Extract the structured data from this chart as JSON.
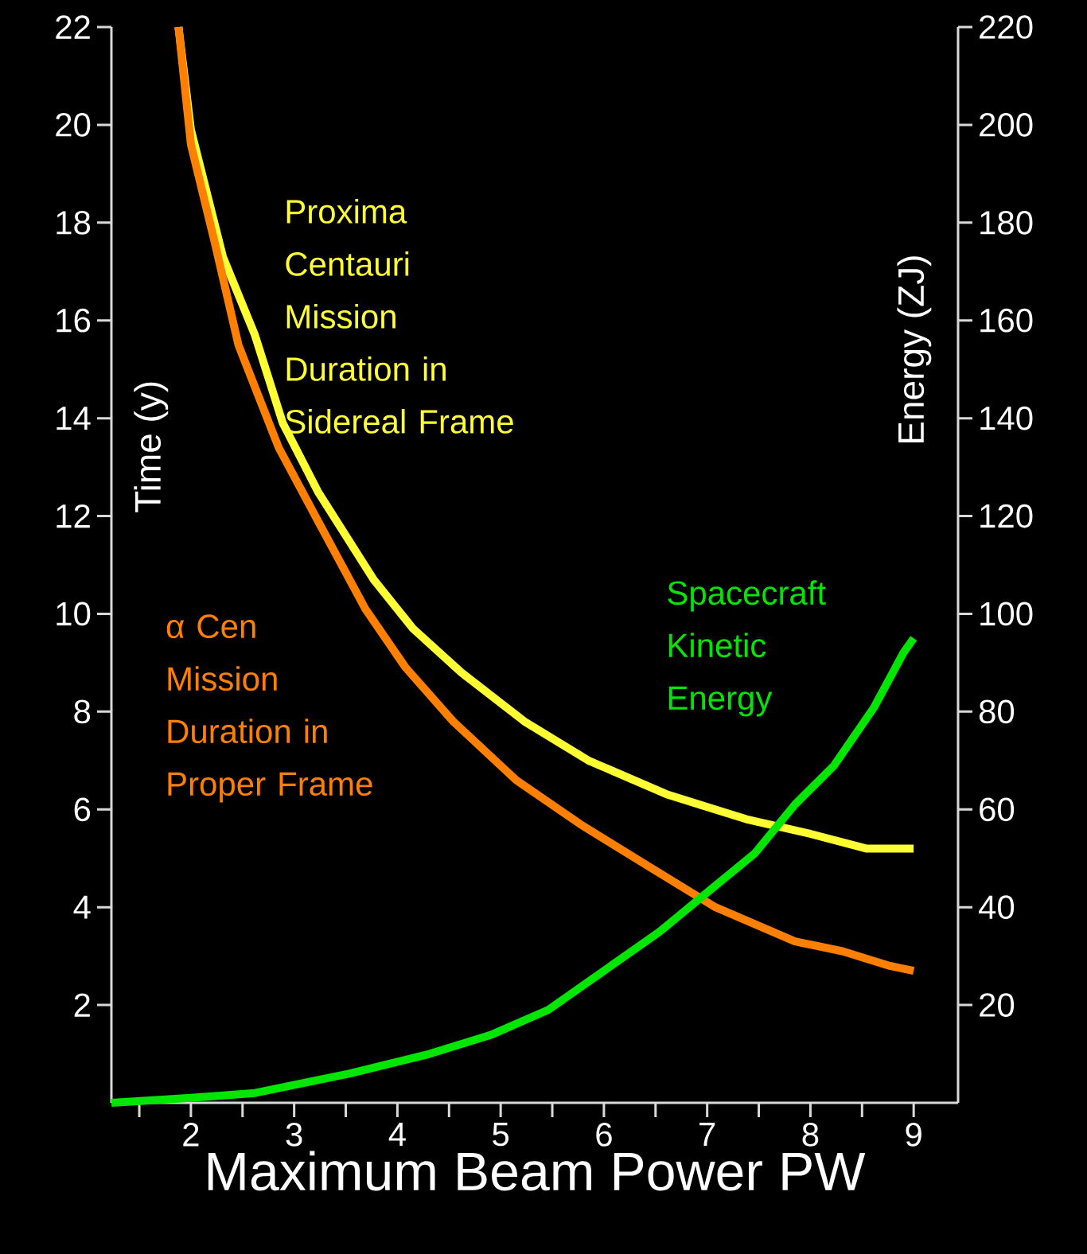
{
  "chart_data": {
    "type": "line",
    "xlabel": "Maximum Beam Power PW",
    "ylabel": "Time (y)",
    "y2label": "Energy (ZJ)",
    "xlim": [
      1.23,
      9.43
    ],
    "ylim": [
      0,
      22
    ],
    "y2lim": [
      0,
      220
    ],
    "xticks": [
      {
        "value": 1.5,
        "label": null
      },
      2,
      {
        "value": 2.5,
        "label": null
      },
      3,
      {
        "value": 3.5,
        "label": null
      },
      4,
      {
        "value": 4.5,
        "label": null
      },
      5,
      {
        "value": 5.5,
        "label": null
      },
      6,
      {
        "value": 6.5,
        "label": null
      },
      7,
      {
        "value": 7.5,
        "label": null
      },
      8,
      {
        "value": 8.5,
        "label": null
      },
      9
    ],
    "yticks": [
      2,
      4,
      6,
      8,
      10,
      12,
      14,
      16,
      18,
      20,
      22
    ],
    "y2ticks": [
      20,
      40,
      60,
      80,
      100,
      120,
      140,
      160,
      180,
      200,
      220
    ],
    "marker": "none",
    "line_style": "solid",
    "series": [
      {
        "name": "Proxima Centauri Mission Duration in Sidereal Frame",
        "color": "#ffff33",
        "x": [
          1.88,
          2.0,
          2.31,
          2.62,
          2.89,
          3.23,
          3.77,
          4.15,
          4.62,
          5.23,
          5.85,
          6.62,
          7.38,
          8.0,
          8.54,
          8.77,
          9.0
        ],
        "values": [
          22.0,
          19.9,
          17.3,
          15.7,
          13.9,
          12.5,
          10.7,
          9.7,
          8.8,
          7.8,
          7.0,
          6.3,
          5.8,
          5.5,
          5.2,
          5.2,
          5.2
        ]
      },
      {
        "name": "α Cen Mission Duration in Proper Frame",
        "color": "#ff7f00",
        "x": [
          1.88,
          2.0,
          2.23,
          2.46,
          2.85,
          3.23,
          3.69,
          4.08,
          4.54,
          5.15,
          5.77,
          6.46,
          7.08,
          7.85,
          8.31,
          8.77,
          9.0
        ],
        "values": [
          22.0,
          19.6,
          17.6,
          15.5,
          13.4,
          11.9,
          10.1,
          8.9,
          7.8,
          6.6,
          5.7,
          4.8,
          4.0,
          3.3,
          3.1,
          2.8,
          2.7
        ]
      },
      {
        "name": "Spacecraft Kinetic Energy",
        "color": "#00e600",
        "axis": "y2",
        "x": [
          1.23,
          2.0,
          2.62,
          3.54,
          4.31,
          4.92,
          5.46,
          6.0,
          6.54,
          7.0,
          7.46,
          7.85,
          8.23,
          8.62,
          8.9,
          9.0
        ],
        "values": [
          0,
          1,
          2,
          6,
          10,
          14,
          19,
          27,
          35,
          43,
          51,
          61,
          69,
          81,
          92,
          95
        ]
      }
    ]
  }
}
